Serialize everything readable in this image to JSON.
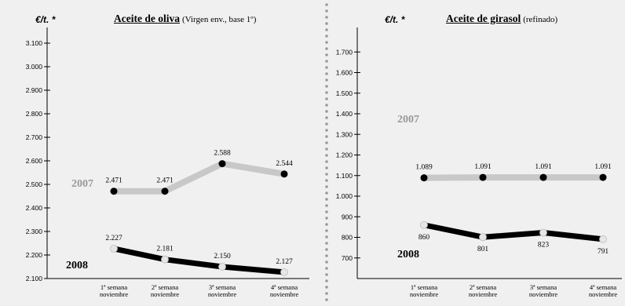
{
  "chart_data": [
    {
      "type": "line",
      "unit_label": "€/t.",
      "unit_marker": "*",
      "title": "Aceite de oliva",
      "subtitle": "(Virgen env., base 1º)",
      "categories": [
        "1ª semana noviembre",
        "2ª semana noviembre",
        "3ª semana noviembre",
        "4ª semana noviembre"
      ],
      "category_lines": [
        [
          "1ª semana",
          "noviembre"
        ],
        [
          "2ª semana",
          "noviembre"
        ],
        [
          "3ª semana",
          "noviembre"
        ],
        [
          "4ª semana",
          "noviembre"
        ]
      ],
      "ylim": [
        2100,
        3150
      ],
      "yticks": [
        2100,
        2200,
        2300,
        2400,
        2500,
        2600,
        2700,
        2800,
        2900,
        3000,
        3100
      ],
      "ytick_labels": [
        "2.100",
        "2.200",
        "2.300",
        "2.400",
        "2.500",
        "2.600",
        "2.700",
        "2.800",
        "2.900",
        "3.000",
        "3.100"
      ],
      "series": [
        {
          "name": "2007",
          "values": [
            2471,
            2471,
            2588,
            2544
          ],
          "labels": [
            "2.471",
            "2.471",
            "2.588",
            "2.544"
          ],
          "label_position": "above",
          "line_color": "#c8c8c8",
          "name_color": "#999999"
        },
        {
          "name": "2008",
          "values": [
            2227,
            2181,
            2150,
            2127
          ],
          "labels": [
            "2.227",
            "2.181",
            "2.150",
            "2.127"
          ],
          "label_position": "above",
          "line_color": "#000000",
          "name_color": "#000000"
        }
      ],
      "grid": false
    },
    {
      "type": "line",
      "unit_label": "€/t.",
      "unit_marker": "*",
      "title": "Aceite de girasol",
      "subtitle": "(refinado)",
      "categories": [
        "1ª semana noviembre",
        "2ª semana noviembre",
        "3ª semana noviembre",
        "4ª semana noviembre"
      ],
      "category_lines": [
        [
          "1ª semana",
          "noviembre"
        ],
        [
          "2ª semana",
          "noviembre"
        ],
        [
          "3ª semana",
          "noviembre"
        ],
        [
          "4ª semana",
          "noviembre"
        ]
      ],
      "ylim": [
        600,
        1800
      ],
      "yticks": [
        700,
        800,
        900,
        1000,
        1100,
        1200,
        1300,
        1400,
        1500,
        1600,
        1700
      ],
      "ytick_labels": [
        "700",
        "800",
        "900",
        "1.000",
        "1.100",
        "1.200",
        "1.300",
        "1.400",
        "1.500",
        "1.600",
        "1.700"
      ],
      "series": [
        {
          "name": "2007",
          "values": [
            1089,
            1091,
            1091,
            1091
          ],
          "labels": [
            "1.089",
            "1.091",
            "1.091",
            "1.091"
          ],
          "label_position": "above",
          "line_color": "#c8c8c8",
          "name_color": "#999999"
        },
        {
          "name": "2008",
          "values": [
            860,
            801,
            823,
            791
          ],
          "labels": [
            "860",
            "801",
            "823",
            "791"
          ],
          "label_position": "below",
          "line_color": "#000000",
          "name_color": "#000000"
        }
      ],
      "grid": false
    }
  ]
}
